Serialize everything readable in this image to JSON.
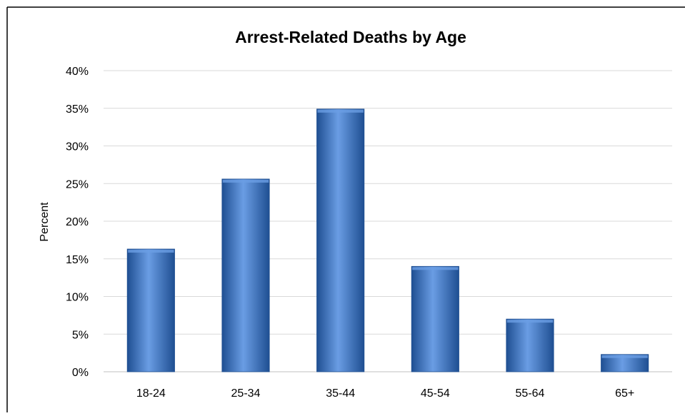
{
  "chart_data": {
    "type": "bar",
    "title": "Arrest-Related Deaths by Age",
    "xlabel": "",
    "ylabel": "Percent",
    "categories": [
      "18-24",
      "25-34",
      "35-44",
      "45-54",
      "55-64",
      "65+"
    ],
    "values": [
      16.3,
      25.6,
      34.9,
      14.0,
      7.0,
      2.3
    ],
    "ylim": [
      0,
      40
    ],
    "yticks": [
      0,
      5,
      10,
      15,
      20,
      25,
      30,
      35,
      40
    ],
    "ytick_labels": [
      "0%",
      "5%",
      "10%",
      "15%",
      "20%",
      "25%",
      "30%",
      "35%",
      "40%"
    ],
    "grid": true,
    "legend": "none",
    "colors": {
      "bar": "#3f7bd0",
      "bar_light": "#6a9de4",
      "bar_dark": "#1f4f92",
      "grid": "#d9d9d9",
      "axis": "#bfbfbf",
      "frame": "#000000"
    }
  }
}
